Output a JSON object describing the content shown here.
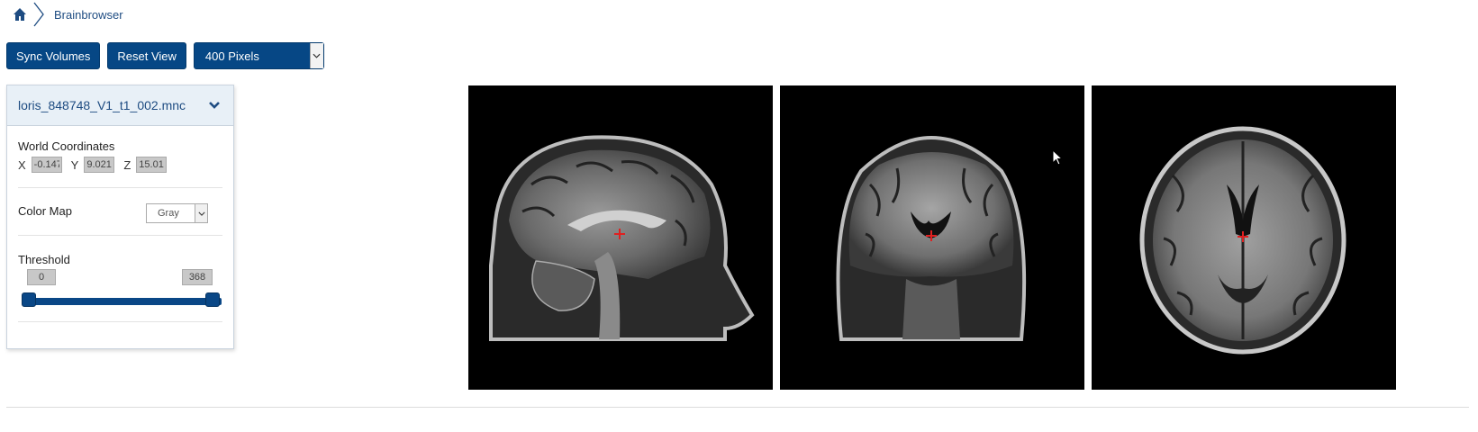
{
  "breadcrumb": {
    "items": [
      "Brainbrowser"
    ]
  },
  "toolbar": {
    "sync_label": "Sync Volumes",
    "reset_label": "Reset View",
    "size_select": {
      "value": "400 Pixels"
    }
  },
  "panel": {
    "title": "loris_848748_V1_t1_002.mnc",
    "world_coordinates": {
      "label": "World Coordinates",
      "x_label": "X",
      "x_value": "-0.147",
      "y_label": "Y",
      "y_value": "9.0210",
      "z_label": "Z",
      "z_value": "15.012"
    },
    "color_map": {
      "label": "Color Map",
      "value": "Gray"
    },
    "threshold": {
      "label": "Threshold",
      "min": "0",
      "max": "368",
      "low_fraction": 0.0,
      "high_fraction": 1.0
    }
  },
  "viewers": {
    "views": [
      "sagittal",
      "coronal",
      "axial"
    ],
    "crosshair_color": "#e02020"
  },
  "colors": {
    "accent": "#064785",
    "viewer_bg": "#000000"
  }
}
